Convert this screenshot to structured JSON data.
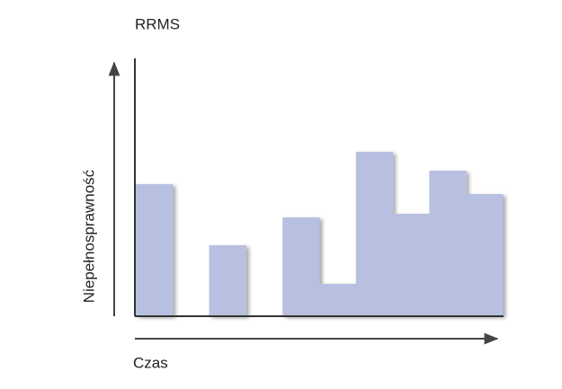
{
  "chart_data": {
    "type": "bar",
    "title": "RRMS",
    "x_label": "Czas",
    "y_label": "Niepełnosprawność",
    "categories": [
      null,
      null,
      null,
      null,
      null,
      null,
      null,
      null,
      null,
      null
    ],
    "values": [
      147,
      0,
      79,
      0,
      110,
      36,
      183,
      114,
      162,
      136
    ],
    "color": "#b8c0e2",
    "ylim": [
      0,
      287
    ]
  }
}
